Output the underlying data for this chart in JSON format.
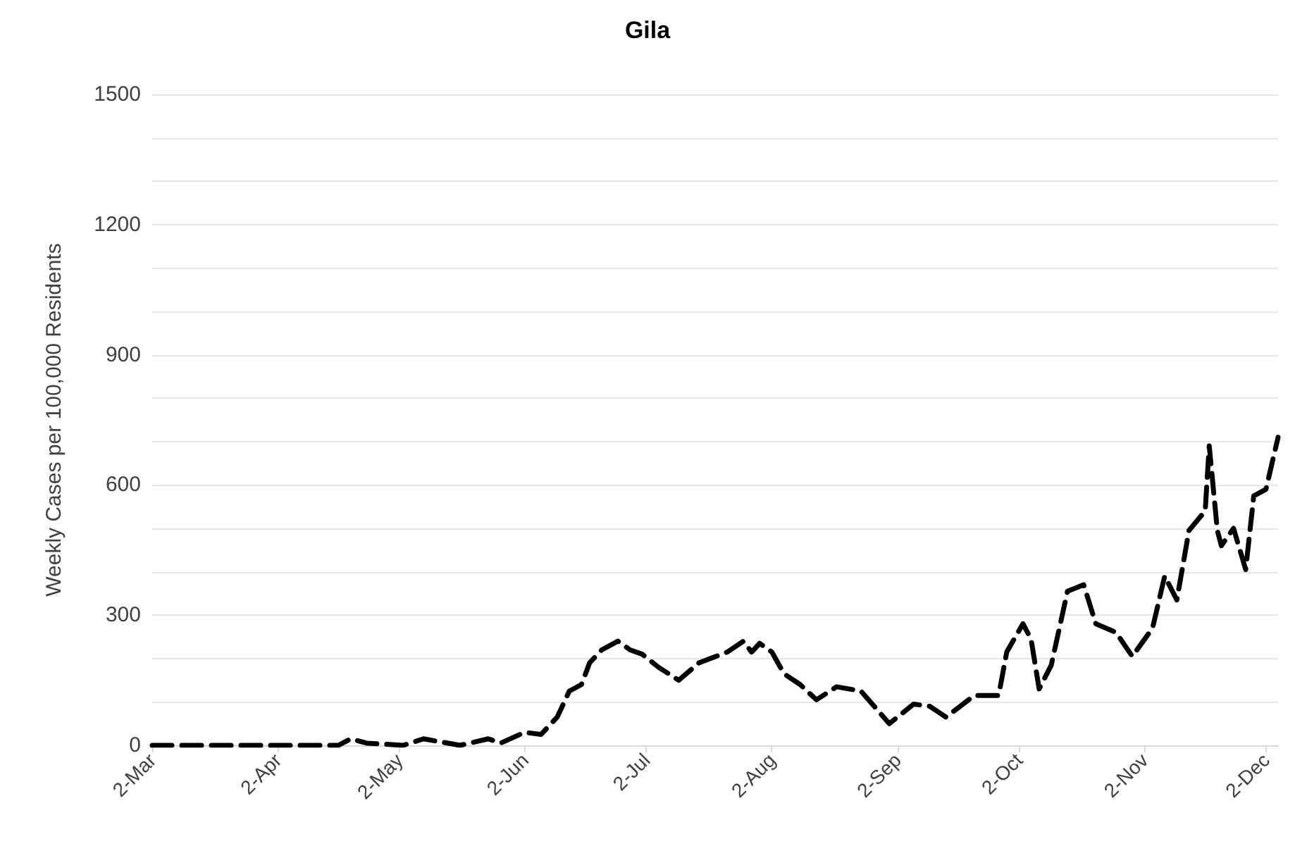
{
  "chart_data": {
    "type": "line",
    "title": "Gila",
    "ylabel": "Weekly Cases per 100,000 Residents",
    "x": [
      "--03-02",
      "--04-17",
      "--04-20",
      "--04-24",
      "--05-03",
      "--05-08",
      "--05-17",
      "--05-24",
      "--05-27",
      "--06-02",
      "--06-06",
      "--06-10",
      "--06-13",
      "--06-16",
      "--06-18",
      "--06-21",
      "--06-25",
      "--06-28",
      "--07-01",
      "--07-05",
      "--07-10",
      "--07-15",
      "--07-22",
      "--07-26",
      "--07-28",
      "--07-30",
      "--08-02",
      "--08-05",
      "--08-09",
      "--08-13",
      "--08-18",
      "--08-24",
      "--08-31",
      "--09-06",
      "--09-10",
      "--09-14",
      "--09-21",
      "--09-27",
      "--09-29",
      "--10-03",
      "--10-05",
      "--10-07",
      "--10-10",
      "--10-14",
      "--10-18",
      "--10-21",
      "--10-26",
      "--10-30",
      "--11-04",
      "--11-07",
      "--11-10",
      "--11-13",
      "--11-17",
      "--11-18",
      "--11-20",
      "--11-21",
      "--11-24",
      "--11-27",
      "--11-29",
      "--12-02",
      "--12-05"
    ],
    "series": [
      {
        "color": "#000000",
        "values": [
          0,
          0,
          15,
          5,
          0,
          15,
          0,
          15,
          5,
          30,
          25,
          65,
          125,
          140,
          190,
          220,
          240,
          220,
          210,
          180,
          150,
          190,
          215,
          240,
          215,
          235,
          215,
          165,
          140,
          105,
          135,
          125,
          50,
          95,
          90,
          65,
          115,
          115,
          215,
          280,
          245,
          130,
          185,
          355,
          370,
          280,
          260,
          205,
          270,
          390,
          335,
          495,
          540,
          690,
          495,
          460,
          500,
          405,
          575,
          590,
          710
        ]
      }
    ],
    "xlim": [
      "--03-02",
      "--12-05"
    ],
    "xticks": [
      {
        "value": "--03-02",
        "label": "2-Mar"
      },
      {
        "value": "--04-02",
        "label": "2-Apr"
      },
      {
        "value": "--05-02",
        "label": "2-May"
      },
      {
        "value": "--06-02",
        "label": "2-Jun"
      },
      {
        "value": "--07-02",
        "label": "2-Jul"
      },
      {
        "value": "--08-02",
        "label": "2-Aug"
      },
      {
        "value": "--09-02",
        "label": "2-Sep"
      },
      {
        "value": "--10-02",
        "label": "2-Oct"
      },
      {
        "value": "--11-02",
        "label": "2-Nov"
      },
      {
        "value": "--12-02",
        "label": "2-Dec"
      }
    ],
    "ylim": [
      0,
      1500
    ],
    "yticks": [
      0,
      {
        "value": 100,
        "label": null
      },
      {
        "value": 200,
        "label": null
      },
      300,
      {
        "value": 400,
        "label": null
      },
      {
        "value": 500,
        "label": null
      },
      600,
      {
        "value": 700,
        "label": null
      },
      {
        "value": 800,
        "label": null
      },
      900,
      {
        "value": 1000,
        "label": null
      },
      {
        "value": 1100,
        "label": null
      },
      1200,
      {
        "value": 1300,
        "label": null
      },
      {
        "value": 1400,
        "label": null
      },
      1500
    ],
    "grid": "y",
    "marker": "none",
    "line_style": "dashed"
  }
}
